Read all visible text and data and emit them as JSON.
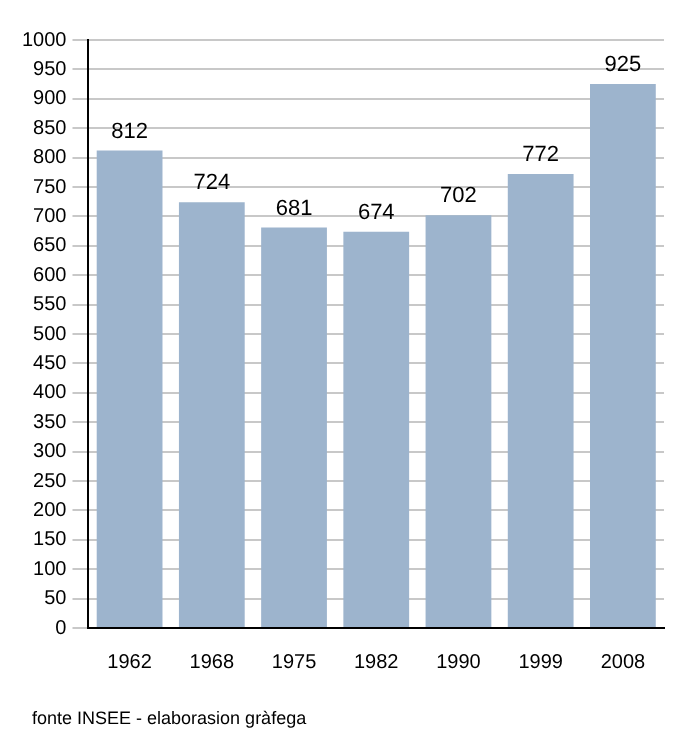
{
  "chart_data": {
    "type": "bar",
    "categories": [
      "1962",
      "1968",
      "1975",
      "1982",
      "1990",
      "1999",
      "2008"
    ],
    "values": [
      812,
      724,
      681,
      674,
      702,
      772,
      925
    ],
    "color": "#9db4cd",
    "ylim": [
      0,
      1000
    ],
    "yticks": [
      0,
      50,
      100,
      150,
      200,
      250,
      300,
      350,
      400,
      450,
      500,
      550,
      600,
      650,
      700,
      750,
      800,
      850,
      900,
      950,
      1000
    ],
    "grid": "y",
    "data_labels": true,
    "legend": false,
    "annotations": [
      "fonte INSEE - elaborasion gràfega"
    ]
  }
}
